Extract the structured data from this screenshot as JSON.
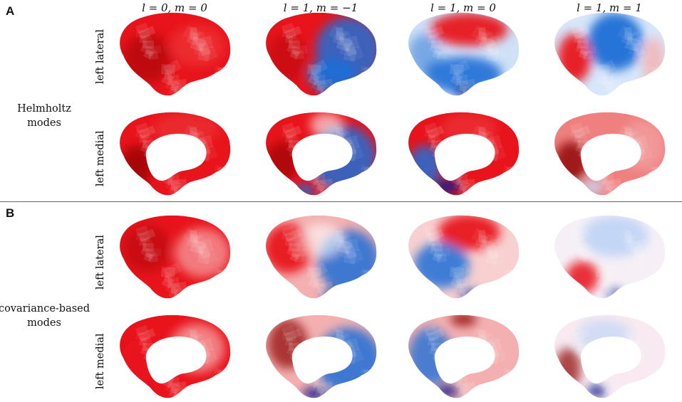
{
  "panel_a": {
    "letter": "A",
    "group_label_lines": [
      "Helmholtz",
      "modes"
    ]
  },
  "panel_b": {
    "letter": "B",
    "group_label_lines": [
      "covariance-based",
      "modes"
    ]
  },
  "columns": [
    "l = 0, m = 0",
    "l = 1, m = −1",
    "l = 1, m = 0",
    "l = 1, m = 1"
  ],
  "row_labels": {
    "lateral": "left lateral",
    "medial": "left medial"
  },
  "colors": {
    "positive": "#e8131b",
    "positive_dark": "#8b0000",
    "negative": "#1f6fd6",
    "negative_dark": "#0a1f8f",
    "neutral": "#ffffff",
    "divider": "#666666"
  }
}
